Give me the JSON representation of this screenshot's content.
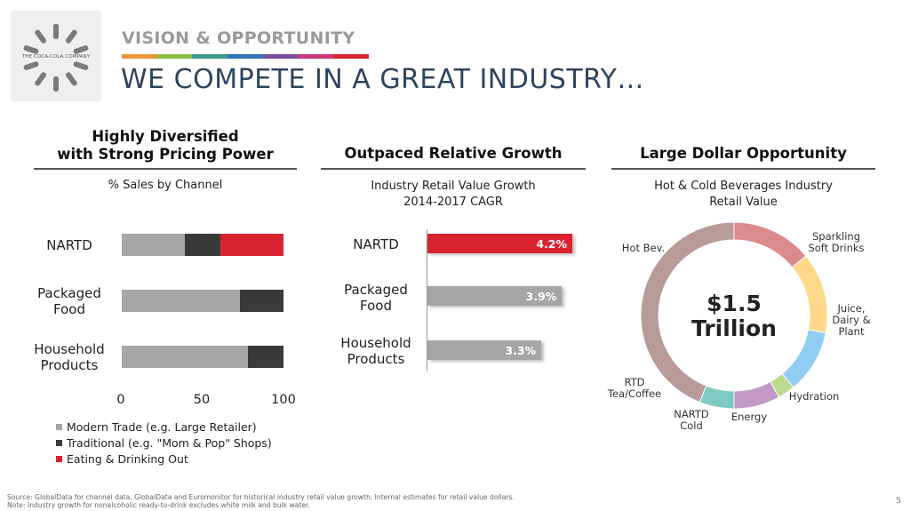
{
  "logo": {
    "text": "THE COCA-COLA COMPANY"
  },
  "header": {
    "eyebrow": "VISION & OPPORTUNITY",
    "title": "WE COMPETE IN A GREAT INDUSTRY…",
    "stripe_colors": [
      "#e8963a",
      "#8dbb44",
      "#3a9a8e",
      "#2f72b5",
      "#7c4f9e",
      "#c83a7c",
      "#d9242f"
    ]
  },
  "chart_data": [
    {
      "type": "bar",
      "orientation": "horizontal",
      "stacked": true,
      "title_lines": [
        "Highly Diversified",
        "with Strong Pricing Power"
      ],
      "subtitle": "% Sales by Channel",
      "categories": [
        "NARTD",
        "Packaged Food",
        "Household Products"
      ],
      "category_lines": [
        [
          "NARTD"
        ],
        [
          "Packaged",
          "Food"
        ],
        [
          "Household",
          "Products"
        ]
      ],
      "series": [
        {
          "name": "Modern Trade (e.g. Large Retailer)",
          "color": "#a6a6a6",
          "values": [
            39,
            73,
            78
          ]
        },
        {
          "name": "Traditional (e.g. \"Mom & Pop\" Shops)",
          "color": "#3a3a3a",
          "values": [
            22,
            27,
            22
          ]
        },
        {
          "name": "Eating & Drinking Out",
          "color": "#d9242f",
          "values": [
            39,
            0,
            0
          ]
        }
      ],
      "xlim": [
        0,
        100
      ],
      "xticks": [
        "0",
        "50",
        "100"
      ],
      "legend_position": "bottom"
    },
    {
      "type": "bar",
      "orientation": "horizontal",
      "title_lines": [
        "Outpaced Relative Growth"
      ],
      "subtitle_lines": [
        "Industry Retail Value Growth",
        "2014-2017 CAGR"
      ],
      "categories": [
        "NARTD",
        "Packaged Food",
        "Household Products"
      ],
      "category_lines": [
        [
          "NARTD"
        ],
        [
          "Packaged",
          "Food"
        ],
        [
          "Household",
          "Products"
        ]
      ],
      "values": [
        4.2,
        3.9,
        3.3
      ],
      "value_labels": [
        "4.2%",
        "3.9%",
        "3.3%"
      ],
      "colors": [
        "#d9242f",
        "#a6a6a6",
        "#a6a6a6"
      ],
      "xlim": [
        0,
        4.5
      ]
    },
    {
      "type": "pie",
      "donut": true,
      "title_lines": [
        "Large Dollar Opportunity"
      ],
      "subtitle_lines": [
        "Hot & Cold Beverages Industry",
        "Retail Value"
      ],
      "center_lines": [
        "$1.5",
        "Trillion"
      ],
      "slices": [
        {
          "label_lines": [
            "Sparkling",
            "Soft Drinks"
          ],
          "value": 14,
          "color": "#db8b8b"
        },
        {
          "label_lines": [
            "Juice,",
            "Dairy &",
            "Plant"
          ],
          "value": 14,
          "color": "#fdd889"
        },
        {
          "label_lines": [
            "Hydration"
          ],
          "value": 11,
          "color": "#8fcdf2"
        },
        {
          "label_lines": [
            "Energy"
          ],
          "value": 3,
          "color": "#bcd98e"
        },
        {
          "label_lines": [
            "NARTD",
            "Cold"
          ],
          "value": 8,
          "color": "#c39ac6"
        },
        {
          "label_lines": [
            "RTD",
            "Tea/Coffee"
          ],
          "value": 6,
          "color": "#7fcac2"
        },
        {
          "label_lines": [
            "Hot Bev."
          ],
          "value": 44,
          "color": "#b89a9a"
        }
      ]
    }
  ],
  "footer": {
    "source": "Source: GlobalData for channel data.  GlobalData and Euromonitor for historical industry retail value growth. Internal estimates for retail value dollars.",
    "note": "Note: Industry growth for nonalcoholic ready-to-drink excludes white milk and bulk water."
  },
  "page_number": "5"
}
